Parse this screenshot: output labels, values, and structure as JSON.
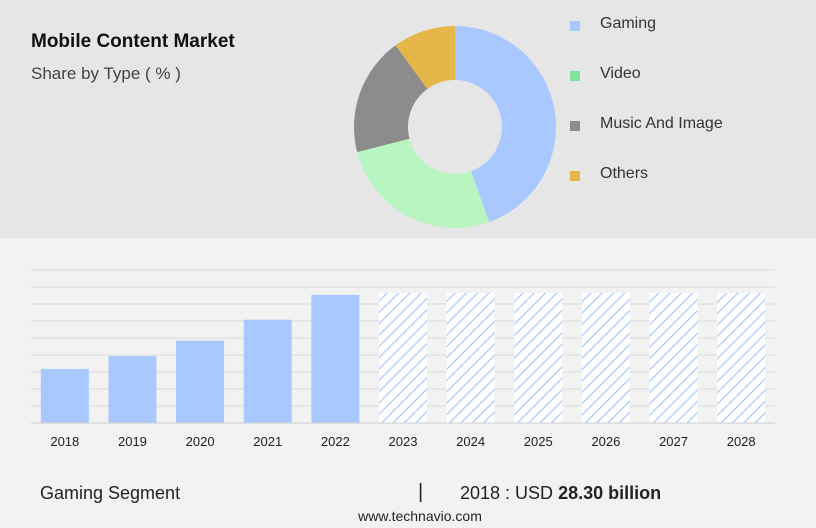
{
  "title": "Mobile Content Market",
  "subtitle": "Share by Type ( % )",
  "chart_data": [
    {
      "type": "pie",
      "title": "Mobile Content Market",
      "subtitle": "Share by Type ( % )",
      "donut": true,
      "legend_position": "right",
      "categories": [
        "Gaming",
        "Video",
        "Music And Image",
        "Others"
      ],
      "values": [
        44.5,
        26.5,
        19.0,
        10.0
      ],
      "colors": [
        "#a9c8ff",
        "#b8f5c0",
        "#8c8c8c",
        "#e5b74a"
      ],
      "legend_colors": [
        "#a9c8ff",
        "#7fe39a",
        "#8c8c8c",
        "#e5b74a"
      ]
    },
    {
      "type": "bar",
      "categories": [
        "2018",
        "2019",
        "2020",
        "2021",
        "2022",
        "2023",
        "2024",
        "2025",
        "2026",
        "2027",
        "2028"
      ],
      "values": [
        28.3,
        35.0,
        43.0,
        54.0,
        67.0,
        68.0,
        68.0,
        68.0,
        68.0,
        68.0,
        68.0
      ],
      "forecast_from": "2023",
      "ylim": [
        0,
        80
      ],
      "grid": true,
      "bar_color": "#a9c8ff",
      "forecast_style": "hatched"
    }
  ],
  "legend": [
    {
      "label": "Gaming",
      "color": "#a9c8ff"
    },
    {
      "label": "Video",
      "color": "#7fe39a"
    },
    {
      "label": "Music And Image",
      "color": "#8c8c8c"
    },
    {
      "label": "Others",
      "color": "#e5b74a"
    }
  ],
  "footer": {
    "segment": "Gaming Segment",
    "separator": "|",
    "stat_prefix": "2018 : USD",
    "stat_value": "28.30 billion",
    "website": "www.technavio.com"
  }
}
